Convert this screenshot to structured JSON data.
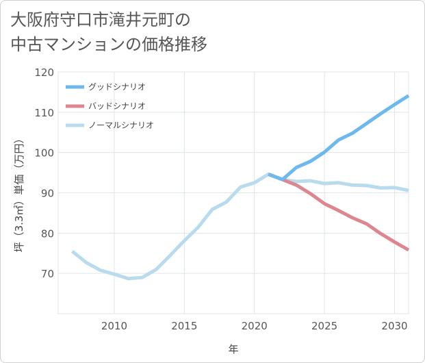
{
  "title_line1": "大阪府守口市滝井元町の",
  "title_line2": "中古マンションの価格推移",
  "colors": {
    "good": "#6db8ec",
    "bad": "#dc8790",
    "normal": "#b8dcee",
    "grid": "#dde5ea",
    "text": "#555555"
  },
  "chart_data": {
    "type": "line",
    "xlabel": "年",
    "ylabel": "坪（3.3㎡）単価（万円）",
    "xlim": [
      2006,
      2031
    ],
    "ylim": [
      60,
      120
    ],
    "x_ticks": [
      2010,
      2015,
      2020,
      2025,
      2030
    ],
    "y_ticks": [
      70,
      80,
      90,
      100,
      110,
      120
    ],
    "x_tick_labels": [
      "2010",
      "2015",
      "2020",
      "2025",
      "2030"
    ],
    "y_tick_labels": [
      "70",
      "80",
      "90",
      "100",
      "110",
      "120"
    ],
    "grid": true,
    "legend_position": "top-left",
    "series": [
      {
        "name": "グッドシナリオ",
        "color": "#6db8ec",
        "x": [
          2021,
          2022,
          2023,
          2024,
          2025,
          2026,
          2027,
          2028,
          2029,
          2030,
          2031
        ],
        "y": [
          94.6,
          93.3,
          96.3,
          97.8,
          100.1,
          103.1,
          104.8,
          107.2,
          109.6,
          111.9,
          114.1
        ]
      },
      {
        "name": "バッドシナリオ",
        "color": "#dc8790",
        "x": [
          2021,
          2022,
          2023,
          2024,
          2025,
          2026,
          2027,
          2028,
          2029,
          2030,
          2031
        ],
        "y": [
          94.6,
          93.3,
          91.9,
          89.8,
          87.3,
          85.6,
          83.8,
          82.3,
          79.9,
          77.8,
          75.8
        ]
      },
      {
        "name": "ノーマルシナリオ",
        "color": "#b8dcee",
        "x": [
          2007,
          2008,
          2009,
          2010,
          2011,
          2012,
          2013,
          2014,
          2015,
          2016,
          2017,
          2018,
          2019,
          2020,
          2021,
          2022,
          2023,
          2024,
          2025,
          2026,
          2027,
          2028,
          2029,
          2030,
          2031
        ],
        "y": [
          75.5,
          72.7,
          70.8,
          69.8,
          68.7,
          69.0,
          71.0,
          74.5,
          78.1,
          81.5,
          85.9,
          87.7,
          91.4,
          92.5,
          94.6,
          93.3,
          92.8,
          93.0,
          92.3,
          92.5,
          91.9,
          91.8,
          91.2,
          91.3,
          90.6
        ]
      }
    ]
  }
}
